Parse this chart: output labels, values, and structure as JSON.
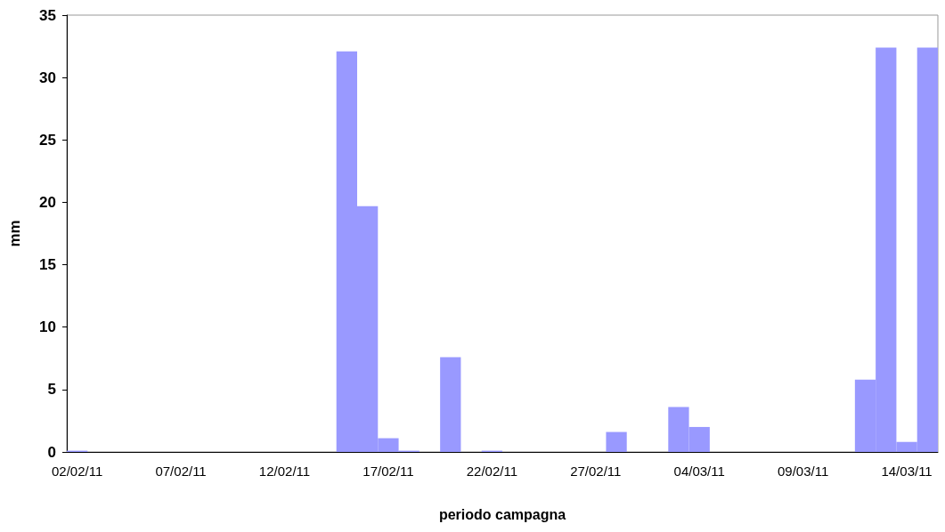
{
  "chart_data": {
    "type": "bar",
    "xlabel": "periodo campagna",
    "ylabel": "mm",
    "categories": [
      "02/02/11",
      null,
      null,
      null,
      null,
      "07/02/11",
      null,
      null,
      null,
      null,
      "12/02/11",
      null,
      null,
      null,
      null,
      "17/02/11",
      null,
      null,
      null,
      null,
      "22/02/11",
      null,
      null,
      null,
      null,
      "27/02/11",
      null,
      null,
      null,
      null,
      "04/03/11",
      null,
      null,
      null,
      null,
      "09/03/11",
      null,
      null,
      null,
      null,
      "14/03/11",
      null
    ],
    "values": [
      0.1,
      0,
      0,
      0,
      0,
      0,
      0,
      0,
      0,
      0,
      0,
      0,
      0,
      32.1,
      19.7,
      1.1,
      0.1,
      0,
      7.6,
      0,
      0.1,
      0,
      0,
      0,
      0,
      0,
      1.6,
      0,
      0,
      3.6,
      2.0,
      0,
      0,
      0,
      0,
      0,
      0,
      0,
      5.8,
      32.4,
      0.8,
      32.4
    ],
    "color": "#9999ff",
    "ylim": [
      0,
      35
    ],
    "yticks": [
      0,
      5,
      10,
      15,
      20,
      25,
      30,
      35
    ]
  }
}
